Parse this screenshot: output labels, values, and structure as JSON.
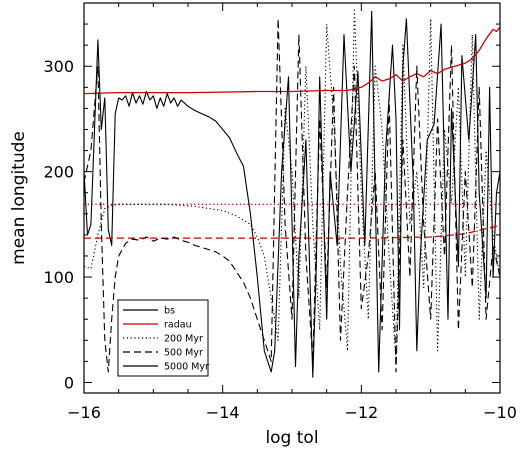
{
  "chart_data": {
    "type": "line",
    "title": "",
    "xlabel": "log tol",
    "ylabel": "mean longitude",
    "xlim": [
      -16,
      -10
    ],
    "ylim": [
      -10,
      360
    ],
    "xticks": [
      -16,
      -14,
      -12,
      -10
    ],
    "xtick_labels": [
      "−16",
      "−14",
      "−12",
      "−10"
    ],
    "yticks": [
      0,
      100,
      200,
      300
    ],
    "ytick_labels": [
      "0",
      "100",
      "200",
      "300"
    ],
    "grid": false,
    "legend": {
      "placement": "bottom-left",
      "entries": [
        {
          "label": "bs",
          "color": "#000000",
          "dash": "solid"
        },
        {
          "label": "radau",
          "color": "#cc0000",
          "dash": "solid"
        },
        {
          "label": "200 Myr",
          "color": "#000000",
          "dash": "dotted"
        },
        {
          "label": "500 Myr",
          "color": "#000000",
          "dash": "dashed"
        },
        {
          "label": "5000 Myr",
          "color": "#000000",
          "dash": "solid"
        }
      ]
    },
    "series": [
      {
        "name": "5000 Myr",
        "method": "bs",
        "color": "#000000",
        "dash": "solid",
        "x": [
          -16.0,
          -15.95,
          -15.9,
          -15.8,
          -15.75,
          -15.7,
          -15.65,
          -15.6,
          -15.55,
          -15.5,
          -15.45,
          -15.4,
          -15.35,
          -15.3,
          -15.25,
          -15.2,
          -15.15,
          -15.1,
          -15.05,
          -15.0,
          -14.95,
          -14.9,
          -14.85,
          -14.8,
          -14.75,
          -14.7,
          -14.65,
          -14.6,
          -14.5,
          -14.4,
          -14.3,
          -14.2,
          -14.1,
          -14.0,
          -13.9,
          -13.8,
          -13.7,
          -13.6,
          -13.5,
          -13.4,
          -13.3,
          -13.25,
          -13.15,
          -13.05,
          -12.95,
          -12.9,
          -12.8,
          -12.7,
          -12.65,
          -12.6,
          -12.5,
          -12.45,
          -12.35,
          -12.25,
          -12.15,
          -12.05,
          -11.95,
          -11.85,
          -11.75,
          -11.65,
          -11.55,
          -11.5,
          -11.45,
          -11.4,
          -11.35,
          -11.25,
          -11.2,
          -11.15,
          -11.05,
          -10.95,
          -10.85,
          -10.75,
          -10.7,
          -10.6,
          -10.55,
          -10.45,
          -10.35,
          -10.3,
          -10.2,
          -10.15,
          -10.1,
          -10.05,
          -10.0
        ],
        "y": [
          200,
          140,
          150,
          325,
          240,
          270,
          145,
          130,
          255,
          270,
          268,
          272,
          262,
          275,
          265,
          272,
          264,
          276,
          268,
          272,
          260,
          270,
          262,
          274,
          265,
          270,
          262,
          268,
          262,
          258,
          255,
          252,
          248,
          240,
          232,
          218,
          205,
          160,
          100,
          30,
          10,
          30,
          200,
          290,
          15,
          120,
          230,
          5,
          110,
          290,
          60,
          200,
          130,
          330,
          200,
          295,
          130,
          352,
          10,
          220,
          320,
          250,
          50,
          300,
          345,
          190,
          30,
          120,
          230,
          245,
          340,
          60,
          260,
          110,
          310,
          230,
          330,
          180,
          80,
          280,
          100,
          180,
          200
        ]
      },
      {
        "name": "radau",
        "method": "radau",
        "color": "#cc0000",
        "dash": "solid",
        "x": [
          -16.0,
          -15.5,
          -15.0,
          -14.5,
          -14.0,
          -13.5,
          -13.0,
          -12.5,
          -12.2,
          -12.0,
          -11.9,
          -11.8,
          -11.7,
          -11.6,
          -11.5,
          -11.4,
          -11.3,
          -11.2,
          -11.1,
          -11.0,
          -10.9,
          -10.8,
          -10.7,
          -10.6,
          -10.5,
          -10.4,
          -10.3,
          -10.2,
          -10.1,
          -10.05,
          -10.0
        ],
        "y": [
          274,
          275,
          275,
          275,
          275.5,
          276,
          276,
          277,
          277,
          280,
          284,
          290,
          286,
          288,
          292,
          286,
          290,
          293,
          290,
          296,
          293,
          297,
          299,
          301,
          303,
          307,
          315,
          326,
          335,
          333,
          337
        ]
      },
      {
        "name": "200 Myr",
        "method": "radau",
        "color": "#cc0000",
        "dash": "dotted",
        "x": [
          -16.0,
          -15.0,
          -14.0,
          -13.0,
          -12.0,
          -11.0,
          -10.0
        ],
        "y": [
          169,
          169,
          169,
          169,
          169,
          169,
          169
        ]
      },
      {
        "name": "500 Myr",
        "method": "radau",
        "color": "#cc0000",
        "dash": "dashed",
        "x": [
          -16.0,
          -15.0,
          -14.0,
          -13.0,
          -12.0,
          -11.0,
          -10.5,
          -10.2,
          -10.0
        ],
        "y": [
          137,
          137,
          137,
          137,
          137,
          138,
          141,
          146,
          149
        ]
      },
      {
        "name": "200 Myr",
        "method": "bs",
        "color": "#000000",
        "dash": "dotted",
        "x": [
          -16.0,
          -15.9,
          -15.8,
          -15.7,
          -15.6,
          -15.5,
          -15.4,
          -15.2,
          -15.0,
          -14.8,
          -14.6,
          -14.4,
          -14.2,
          -14.0,
          -13.8,
          -13.6,
          -13.5,
          -13.4,
          -13.3,
          -13.2,
          -13.1,
          -13.0,
          -12.9,
          -12.8,
          -12.7,
          -12.6,
          -12.5,
          -12.4,
          -12.3,
          -12.2,
          -12.1,
          -12.0,
          -11.9,
          -11.8,
          -11.7,
          -11.6,
          -11.5,
          -11.4,
          -11.3,
          -11.2,
          -11.1,
          -11.0,
          -10.9,
          -10.8,
          -10.7,
          -10.6,
          -10.5,
          -10.4,
          -10.3,
          -10.2,
          -10.1,
          -10.0
        ],
        "y": [
          110,
          108,
          140,
          165,
          168,
          169,
          169,
          169,
          169,
          169,
          168,
          167,
          165,
          163,
          158,
          150,
          138,
          120,
          80,
          40,
          260,
          200,
          80,
          300,
          150,
          50,
          340,
          250,
          110,
          30,
          355,
          180,
          60,
          300,
          240,
          120,
          20,
          320,
          150,
          200,
          90,
          345,
          30,
          240,
          170,
          280,
          100,
          330,
          60,
          220,
          140,
          100
        ]
      },
      {
        "name": "500 Myr",
        "method": "bs",
        "color": "#000000",
        "dash": "dashed",
        "x": [
          -16.0,
          -15.9,
          -15.8,
          -15.75,
          -15.7,
          -15.65,
          -15.6,
          -15.55,
          -15.5,
          -15.4,
          -15.3,
          -15.2,
          -15.1,
          -15.0,
          -14.9,
          -14.8,
          -14.7,
          -14.6,
          -14.5,
          -14.4,
          -14.3,
          -14.2,
          -14.1,
          -14.0,
          -13.9,
          -13.8,
          -13.7,
          -13.6,
          -13.5,
          -13.4,
          -13.3,
          -13.2,
          -13.1,
          -13.0,
          -12.9,
          -12.8,
          -12.7,
          -12.6,
          -12.5,
          -12.4,
          -12.3,
          -12.2,
          -12.1,
          -12.0,
          -11.9,
          -11.8,
          -11.7,
          -11.6,
          -11.5,
          -11.4,
          -11.3,
          -11.2,
          -11.1,
          -11.0,
          -10.9,
          -10.8,
          -10.7,
          -10.6,
          -10.5,
          -10.4,
          -10.3,
          -10.2,
          -10.1,
          -10.0
        ],
        "y": [
          190,
          220,
          300,
          150,
          40,
          10,
          60,
          100,
          120,
          132,
          136,
          135,
          138,
          134,
          137,
          136,
          138,
          135,
          133,
          130,
          128,
          126,
          124,
          120,
          115,
          105,
          95,
          80,
          60,
          40,
          20,
          345,
          150,
          60,
          330,
          120,
          20,
          250,
          90,
          280,
          40,
          180,
          300,
          70,
          120,
          200,
          50,
          270,
          10,
          230,
          100,
          300,
          150,
          60,
          250,
          120,
          320,
          50,
          200,
          90,
          280,
          60,
          130,
          100
        ]
      }
    ]
  }
}
